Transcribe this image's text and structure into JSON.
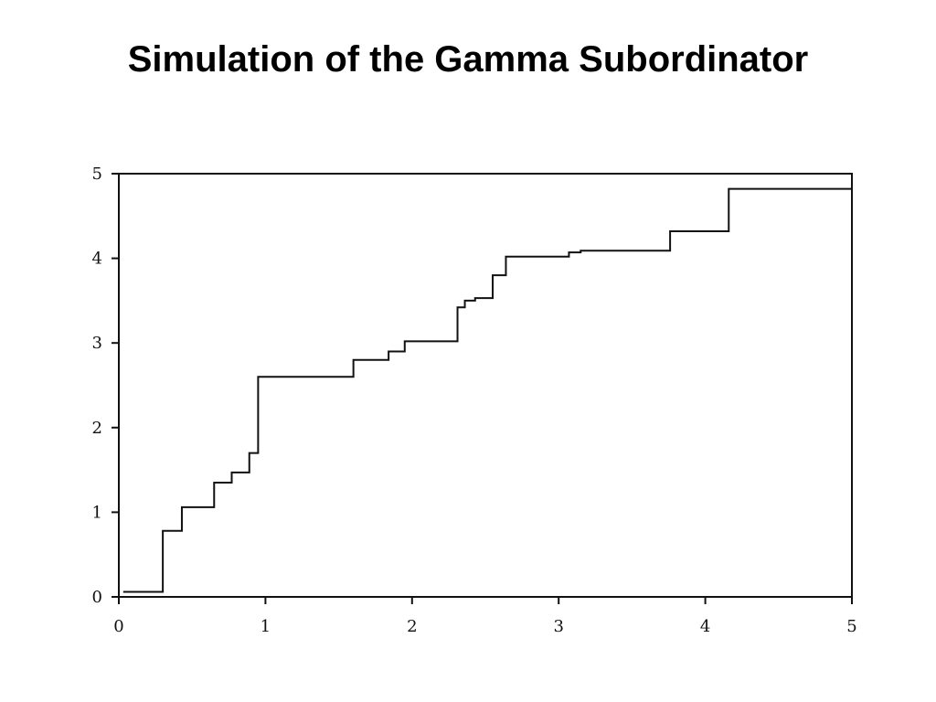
{
  "chart_data": {
    "type": "step",
    "title": "Simulation of the Gamma Subordinator",
    "x": [
      0.03,
      0.3,
      0.43,
      0.65,
      0.77,
      0.89,
      0.95,
      1.6,
      1.84,
      1.95,
      2.31,
      2.36,
      2.43,
      2.55,
      2.64,
      3.07,
      3.15,
      3.76,
      4.16,
      5
    ],
    "values": [
      0.06,
      0.78,
      1.06,
      1.35,
      1.47,
      1.7,
      2.6,
      2.8,
      2.9,
      3.02,
      3.42,
      3.5,
      3.53,
      3.8,
      4.02,
      4.07,
      4.09,
      4.32,
      4.82,
      4.82
    ],
    "color": "#111111",
    "xlim": [
      0,
      5
    ],
    "ylim": [
      0,
      5
    ],
    "xticks": [
      0,
      1,
      2,
      3,
      4,
      5
    ],
    "yticks": [
      0,
      1,
      2,
      3,
      4,
      5
    ]
  }
}
